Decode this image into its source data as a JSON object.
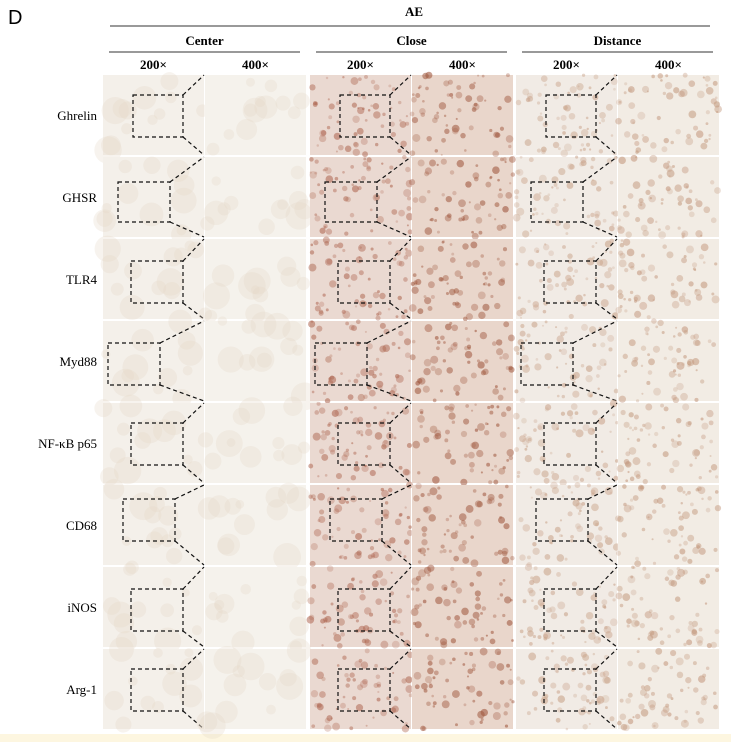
{
  "panel": "D",
  "header": {
    "title": "AE",
    "groups": [
      {
        "label": "Center",
        "columns": [
          "200×",
          "400×"
        ]
      },
      {
        "label": "Close",
        "columns": [
          "200×",
          "400×"
        ]
      },
      {
        "label": "Distance",
        "columns": [
          "200×",
          "400×"
        ]
      }
    ]
  },
  "rows": [
    "Ghrelin",
    "GHSR",
    "TLR4",
    "Myd88",
    "NF-κB p65",
    "CD68",
    "iNOS",
    "Arg-1"
  ]
}
